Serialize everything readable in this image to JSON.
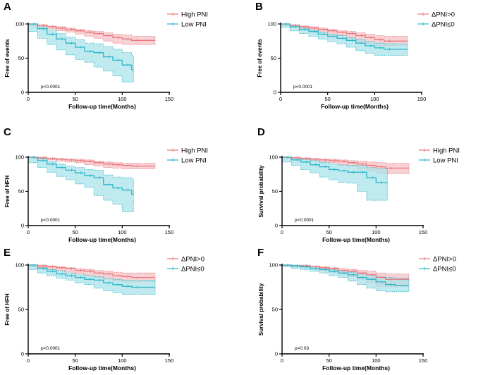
{
  "colors": {
    "high": "#e8787e",
    "low": "#2bb5c8",
    "high_band": "#f6c2c6",
    "low_band": "#a9e3ea",
    "axis": "#000000"
  },
  "chart_data": [
    {
      "panel": "A",
      "type": "line",
      "ylabel": "Free of events",
      "xlabel": "Follow-up time(Months)",
      "xlim": [
        0,
        150
      ],
      "ylim": [
        0,
        100
      ],
      "xticks": [
        "0",
        "50",
        "100",
        "150"
      ],
      "yticks": [
        "0",
        "50",
        "100"
      ],
      "p_value": "p<0.0001",
      "legend": [
        "High PNI",
        "Low PNI"
      ],
      "series": [
        {
          "name": "High PNI",
          "x": [
            0,
            10,
            20,
            30,
            40,
            50,
            60,
            70,
            80,
            90,
            100,
            110,
            120,
            135
          ],
          "y": [
            100,
            98,
            96,
            94,
            92,
            90,
            88,
            86,
            83,
            80,
            78,
            76,
            76,
            76
          ],
          "lower": [
            100,
            97,
            95,
            93,
            90,
            88,
            85,
            82,
            79,
            75,
            72,
            70,
            70,
            70
          ],
          "upper": [
            100,
            99,
            97,
            96,
            94,
            92,
            90,
            89,
            87,
            85,
            84,
            82,
            82,
            82
          ]
        },
        {
          "name": "Low PNI",
          "x": [
            0,
            10,
            20,
            30,
            40,
            50,
            60,
            70,
            80,
            90,
            100,
            110,
            112
          ],
          "y": [
            100,
            93,
            85,
            78,
            72,
            66,
            60,
            58,
            52,
            47,
            40,
            33,
            33
          ],
          "lower": [
            100,
            89,
            79,
            70,
            62,
            55,
            48,
            44,
            37,
            31,
            24,
            15,
            15
          ],
          "upper": [
            100,
            96,
            91,
            86,
            81,
            77,
            72,
            71,
            67,
            63,
            58,
            54,
            54
          ]
        }
      ]
    },
    {
      "panel": "B",
      "type": "line",
      "ylabel": "Free of events",
      "xlabel": "Follow-up time(Months)",
      "xlim": [
        0,
        150
      ],
      "ylim": [
        0,
        100
      ],
      "xticks": [
        "0",
        "50",
        "100",
        "150"
      ],
      "yticks": [
        "0",
        "50",
        "100"
      ],
      "p_value": "p<0.0001",
      "legend": [
        "ΔPNI>0",
        "ΔPNI≤0"
      ],
      "series": [
        {
          "name": "ΔPNI>0",
          "x": [
            0,
            10,
            20,
            30,
            40,
            50,
            60,
            70,
            80,
            90,
            100,
            110,
            120,
            135
          ],
          "y": [
            100,
            98,
            96,
            94,
            92,
            90,
            88,
            86,
            83,
            80,
            77,
            75,
            75,
            75
          ],
          "lower": [
            100,
            97,
            95,
            93,
            90,
            88,
            85,
            83,
            79,
            75,
            71,
            68,
            68,
            68
          ],
          "upper": [
            100,
            99,
            97,
            96,
            94,
            92,
            90,
            89,
            87,
            85,
            83,
            82,
            82,
            82
          ]
        },
        {
          "name": "ΔPNI≤0",
          "x": [
            0,
            10,
            20,
            30,
            40,
            50,
            60,
            70,
            80,
            90,
            100,
            110,
            120,
            135
          ],
          "y": [
            100,
            96,
            92,
            89,
            85,
            82,
            79,
            76,
            72,
            68,
            65,
            63,
            63,
            63
          ],
          "lower": [
            100,
            95,
            90,
            86,
            82,
            78,
            74,
            71,
            66,
            61,
            57,
            54,
            54,
            54
          ],
          "upper": [
            100,
            98,
            94,
            91,
            88,
            85,
            83,
            80,
            77,
            74,
            72,
            71,
            71,
            71
          ]
        }
      ]
    },
    {
      "panel": "C",
      "type": "line",
      "ylabel": "Free of HFH",
      "xlabel": "Follow-up time(Months)",
      "xlim": [
        0,
        150
      ],
      "ylim": [
        0,
        100
      ],
      "xticks": [
        "0",
        "50",
        "100",
        "150"
      ],
      "yticks": [
        "0",
        "50",
        "100"
      ],
      "p_value": "p<0.0001",
      "legend": [
        "High PNI",
        "Low PNI"
      ],
      "series": [
        {
          "name": "High PNI",
          "x": [
            0,
            10,
            20,
            30,
            40,
            50,
            60,
            70,
            80,
            90,
            100,
            110,
            120,
            135
          ],
          "y": [
            100,
            99,
            98,
            97,
            96,
            95,
            94,
            92,
            90,
            89,
            88,
            87,
            87,
            87
          ],
          "lower": [
            100,
            98,
            97,
            96,
            94,
            93,
            92,
            89,
            87,
            85,
            84,
            83,
            83,
            83
          ],
          "upper": [
            100,
            100,
            99,
            98,
            97,
            97,
            96,
            94,
            93,
            92,
            91,
            91,
            91,
            91
          ]
        },
        {
          "name": "Low PNI",
          "x": [
            0,
            10,
            20,
            30,
            40,
            50,
            60,
            70,
            80,
            90,
            100,
            110,
            112
          ],
          "y": [
            100,
            95,
            90,
            85,
            81,
            77,
            73,
            70,
            60,
            55,
            52,
            46,
            46
          ],
          "lower": [
            100,
            92,
            85,
            78,
            72,
            67,
            61,
            56,
            44,
            37,
            31,
            20,
            20
          ],
          "upper": [
            100,
            98,
            94,
            90,
            87,
            85,
            82,
            81,
            74,
            71,
            70,
            68,
            68
          ]
        }
      ]
    },
    {
      "panel": "D",
      "type": "line",
      "ylabel": "Survival probability",
      "xlabel": "Follow-up time(Months)",
      "xlim": [
        0,
        150
      ],
      "ylim": [
        0,
        100
      ],
      "xticks": [
        "0",
        "50",
        "100",
        "150"
      ],
      "yticks": [
        "0",
        "50",
        "100"
      ],
      "p_value": "p<0.0001",
      "legend": [
        "High PNI",
        "Low PNI"
      ],
      "series": [
        {
          "name": "High PNI",
          "x": [
            0,
            10,
            20,
            30,
            40,
            50,
            60,
            70,
            80,
            90,
            100,
            110,
            120,
            135
          ],
          "y": [
            100,
            99,
            98,
            97,
            96,
            95,
            94,
            92,
            90,
            88,
            86,
            84,
            84,
            84
          ],
          "lower": [
            100,
            98,
            97,
            96,
            94,
            93,
            92,
            89,
            86,
            83,
            80,
            76,
            76,
            76
          ],
          "upper": [
            100,
            100,
            99,
            98,
            97,
            97,
            96,
            95,
            94,
            93,
            92,
            91,
            91,
            91
          ]
        },
        {
          "name": "Low PNI",
          "x": [
            0,
            10,
            20,
            30,
            40,
            50,
            60,
            70,
            80,
            90,
            100,
            110,
            112
          ],
          "y": [
            100,
            96,
            93,
            89,
            86,
            82,
            80,
            78,
            78,
            70,
            63,
            63,
            63
          ],
          "lower": [
            100,
            93,
            88,
            82,
            77,
            71,
            67,
            63,
            62,
            50,
            37,
            37,
            37
          ],
          "upper": [
            100,
            99,
            97,
            95,
            92,
            90,
            88,
            88,
            88,
            85,
            83,
            83,
            83
          ]
        }
      ]
    },
    {
      "panel": "E",
      "type": "line",
      "ylabel": "Free of HFH",
      "xlabel": "Follow-up time(Months)",
      "xlim": [
        0,
        150
      ],
      "ylim": [
        0,
        100
      ],
      "xticks": [
        "0",
        "50",
        "100",
        "150"
      ],
      "yticks": [
        "0",
        "50",
        "100"
      ],
      "p_value": "p<0.0001",
      "legend": [
        "ΔPNI>0",
        "ΔPNI≤0"
      ],
      "series": [
        {
          "name": "ΔPNI>0",
          "x": [
            0,
            10,
            20,
            30,
            40,
            50,
            60,
            70,
            80,
            90,
            100,
            110,
            120,
            135
          ],
          "y": [
            100,
            99,
            98,
            97,
            96,
            94,
            93,
            91,
            90,
            88,
            87,
            86,
            86,
            86
          ],
          "lower": [
            100,
            98,
            97,
            95,
            94,
            92,
            90,
            88,
            86,
            84,
            82,
            81,
            81,
            81
          ],
          "upper": [
            100,
            100,
            99,
            98,
            97,
            96,
            95,
            94,
            93,
            92,
            91,
            91,
            91,
            91
          ]
        },
        {
          "name": "ΔPNI≤0",
          "x": [
            0,
            10,
            20,
            30,
            40,
            50,
            60,
            70,
            80,
            90,
            100,
            110,
            120,
            135
          ],
          "y": [
            100,
            96,
            93,
            90,
            88,
            86,
            84,
            83,
            80,
            78,
            76,
            75,
            75,
            75
          ],
          "lower": [
            100,
            95,
            91,
            88,
            85,
            83,
            80,
            78,
            74,
            71,
            69,
            67,
            67,
            67
          ],
          "upper": [
            100,
            97,
            95,
            93,
            91,
            89,
            88,
            87,
            85,
            84,
            83,
            83,
            83,
            83
          ]
        }
      ]
    },
    {
      "panel": "F",
      "type": "line",
      "ylabel": "Survival probability",
      "xlabel": "Follow-up time(Months)",
      "xlim": [
        0,
        150
      ],
      "ylim": [
        0,
        100
      ],
      "xticks": [
        "0",
        "50",
        "100",
        "150"
      ],
      "yticks": [
        "0",
        "50",
        "100"
      ],
      "p_value": "p=0.03",
      "legend": [
        "ΔPNI>0",
        "ΔPNI≤0"
      ],
      "series": [
        {
          "name": "ΔPNI>0",
          "x": [
            0,
            10,
            20,
            30,
            40,
            50,
            60,
            70,
            80,
            90,
            100,
            110,
            120,
            135
          ],
          "y": [
            100,
            99,
            99,
            98,
            97,
            96,
            94,
            93,
            91,
            89,
            86,
            84,
            84,
            84
          ],
          "lower": [
            100,
            99,
            98,
            97,
            96,
            94,
            92,
            90,
            87,
            84,
            80,
            76,
            76,
            76
          ],
          "upper": [
            100,
            100,
            100,
            99,
            98,
            97,
            96,
            95,
            94,
            93,
            91,
            90,
            90,
            90
          ]
        },
        {
          "name": "ΔPNI≤0",
          "x": [
            0,
            10,
            20,
            30,
            40,
            50,
            60,
            70,
            80,
            90,
            100,
            110,
            120,
            135
          ],
          "y": [
            100,
            99,
            98,
            96,
            95,
            93,
            91,
            89,
            86,
            84,
            81,
            78,
            77,
            77
          ],
          "lower": [
            100,
            98,
            96,
            95,
            93,
            91,
            88,
            86,
            82,
            78,
            74,
            71,
            70,
            70
          ],
          "upper": [
            100,
            100,
            99,
            98,
            97,
            95,
            94,
            92,
            90,
            89,
            87,
            86,
            85,
            85
          ]
        }
      ]
    }
  ]
}
